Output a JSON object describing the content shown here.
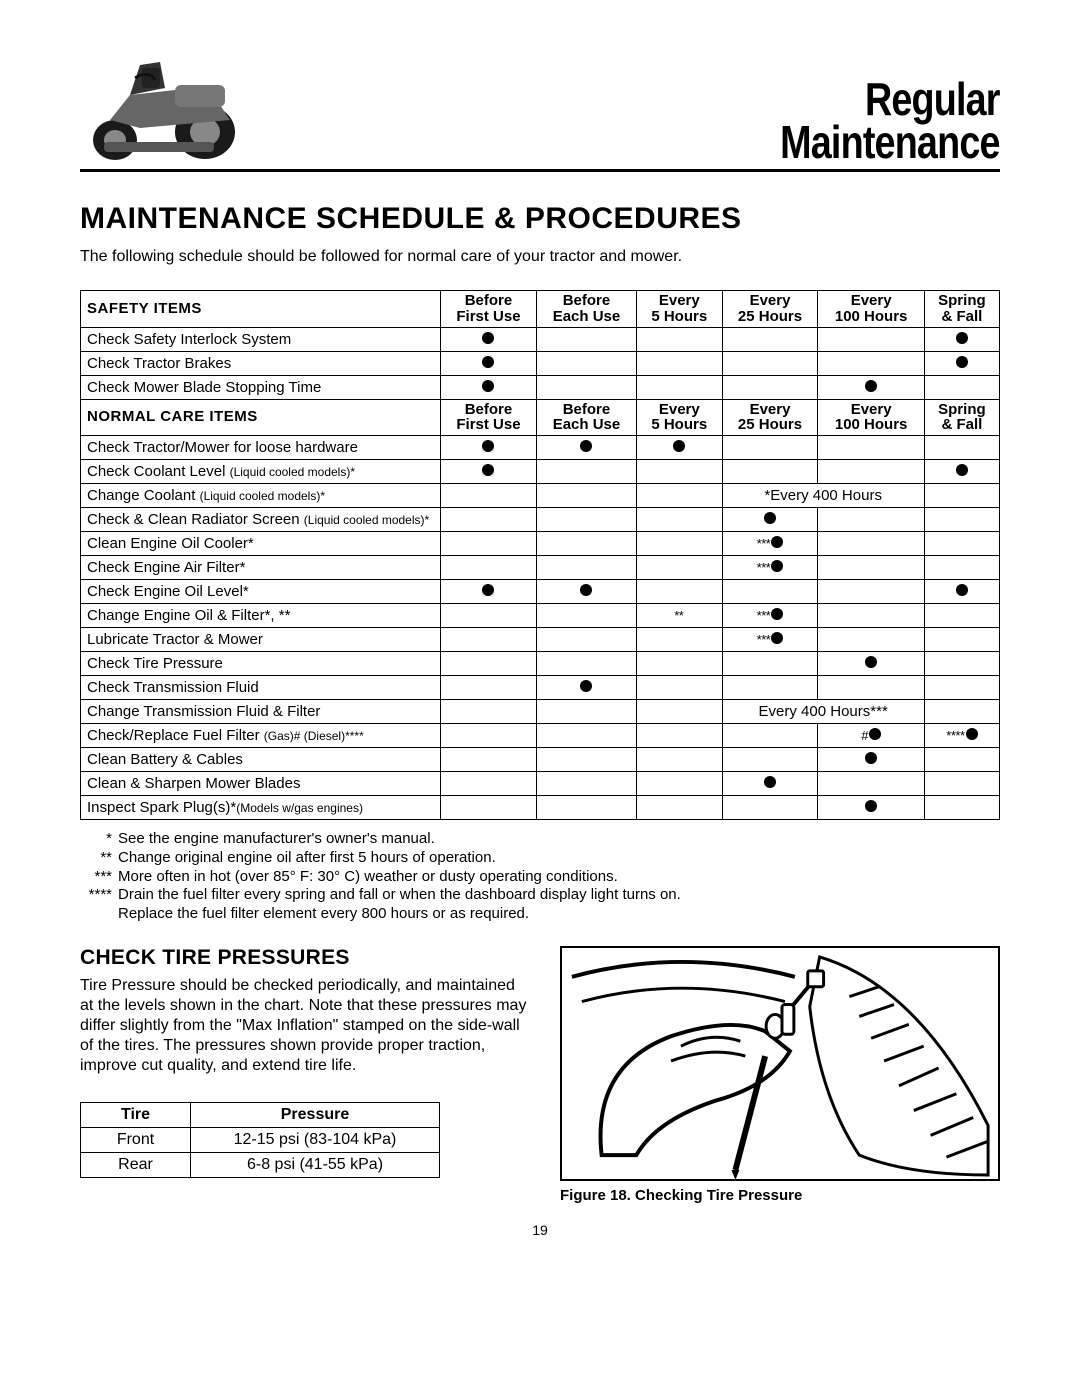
{
  "header": {
    "title_line1": "Regular",
    "title_line2": "Maintenance"
  },
  "h1": "MAINTENANCE SCHEDULE & PROCEDURES",
  "intro": "The following schedule should be followed for normal care of your tractor and mower.",
  "schedule": {
    "columns": [
      {
        "line1": "Before",
        "line2": "First Use"
      },
      {
        "line1": "Before",
        "line2": "Each Use"
      },
      {
        "line1": "Every",
        "line2": "5 Hours"
      },
      {
        "line1": "Every",
        "line2": "25 Hours"
      },
      {
        "line1": "Every",
        "line2": "100 Hours"
      },
      {
        "line1": "Spring",
        "line2": "& Fall"
      }
    ],
    "sections": [
      {
        "label": "SAFETY ITEMS",
        "rows": [
          {
            "item": "Check Safety Interlock System",
            "marks": [
              "dot",
              "",
              "",
              "",
              "",
              "dot"
            ],
            "prefix": [
              "",
              "",
              "",
              "",
              "",
              ""
            ]
          },
          {
            "item": "Check Tractor Brakes",
            "marks": [
              "dot",
              "",
              "",
              "",
              "",
              "dot"
            ],
            "prefix": [
              "",
              "",
              "",
              "",
              "",
              ""
            ]
          },
          {
            "item": "Check Mower Blade Stopping Time",
            "marks": [
              "dot",
              "",
              "",
              "",
              "dot",
              ""
            ],
            "prefix": [
              "",
              "",
              "",
              "",
              "",
              ""
            ]
          }
        ]
      },
      {
        "label": "NORMAL CARE ITEMS",
        "rows": [
          {
            "item": "Check Tractor/Mower for loose hardware",
            "marks": [
              "dot",
              "dot",
              "dot",
              "",
              "",
              ""
            ],
            "prefix": [
              "",
              "",
              "",
              "",
              "",
              ""
            ]
          },
          {
            "item_html": "Check Coolant Level <span class='small'>(Liquid cooled models)*</span>",
            "marks": [
              "dot",
              "",
              "",
              "",
              "",
              "dot"
            ],
            "prefix": [
              "",
              "",
              "",
              "",
              "",
              ""
            ]
          },
          {
            "item_html": "Change Coolant <span class='small'>(Liquid cooled models)*</span>",
            "span": {
              "from": 3,
              "to": 4,
              "text": "*Every 400 Hours"
            },
            "marks": [
              "",
              "",
              "",
              "",
              "",
              ""
            ],
            "prefix": [
              "",
              "",
              "",
              "",
              "",
              ""
            ]
          },
          {
            "item_html": "Check & Clean Radiator Screen <span class='small'>(Liquid cooled models)*</span>",
            "marks": [
              "",
              "",
              "",
              "dot",
              "",
              ""
            ],
            "prefix": [
              "",
              "",
              "",
              "",
              "",
              ""
            ]
          },
          {
            "item": "Clean Engine Oil Cooler*",
            "marks": [
              "",
              "",
              "",
              "dot",
              "",
              ""
            ],
            "prefix": [
              "",
              "",
              "",
              "***",
              "",
              ""
            ]
          },
          {
            "item": "Check Engine Air Filter*",
            "marks": [
              "",
              "",
              "",
              "dot",
              "",
              ""
            ],
            "prefix": [
              "",
              "",
              "",
              "***",
              "",
              ""
            ]
          },
          {
            "item": "Check Engine Oil Level*",
            "marks": [
              "dot",
              "dot",
              "",
              "",
              "",
              "dot"
            ],
            "prefix": [
              "",
              "",
              "",
              "",
              "",
              ""
            ]
          },
          {
            "item": "Change Engine Oil & Filter*, **",
            "marks": [
              "",
              "",
              "",
              "dot",
              "",
              ""
            ],
            "prefix": [
              "",
              "",
              "**",
              "***",
              "",
              ""
            ],
            "textonly": [
              false,
              false,
              true,
              false,
              false,
              false
            ]
          },
          {
            "item": "Lubricate Tractor & Mower",
            "marks": [
              "",
              "",
              "",
              "dot",
              "",
              ""
            ],
            "prefix": [
              "",
              "",
              "",
              "***",
              "",
              ""
            ]
          },
          {
            "item": "Check Tire Pressure",
            "marks": [
              "",
              "",
              "",
              "",
              "dot",
              ""
            ],
            "prefix": [
              "",
              "",
              "",
              "",
              "",
              ""
            ]
          },
          {
            "item": "Check Transmission Fluid",
            "marks": [
              "",
              "dot",
              "",
              "",
              "",
              ""
            ],
            "prefix": [
              "",
              "",
              "",
              "",
              "",
              ""
            ]
          },
          {
            "item": "Change Transmission Fluid & Filter",
            "span": {
              "from": 3,
              "to": 4,
              "text": "Every 400 Hours***"
            },
            "marks": [
              "",
              "",
              "",
              "",
              "",
              ""
            ],
            "prefix": [
              "",
              "",
              "",
              "",
              "",
              ""
            ]
          },
          {
            "item_html": "Check/Replace Fuel Filter  <span class='small'>(Gas)#  (Diesel)****</span>",
            "marks": [
              "",
              "",
              "",
              "",
              "dot",
              "dot"
            ],
            "prefix": [
              "",
              "",
              "",
              "",
              "#",
              "****"
            ]
          },
          {
            "item": "Clean Battery & Cables",
            "marks": [
              "",
              "",
              "",
              "",
              "dot",
              ""
            ],
            "prefix": [
              "",
              "",
              "",
              "",
              "",
              ""
            ]
          },
          {
            "item": "Clean & Sharpen Mower Blades",
            "marks": [
              "",
              "",
              "",
              "dot",
              "",
              ""
            ],
            "prefix": [
              "",
              "",
              "",
              "",
              "",
              ""
            ]
          },
          {
            "item_html": "Inspect Spark Plug(s)*<span class='small'>(Models w/gas engines)</span>",
            "marks": [
              "",
              "",
              "",
              "",
              "dot",
              ""
            ],
            "prefix": [
              "",
              "",
              "",
              "",
              "",
              ""
            ]
          }
        ]
      }
    ]
  },
  "footnotes": [
    {
      "sym": "*",
      "text": "See the engine manufacturer's owner's manual."
    },
    {
      "sym": "**",
      "text": "Change original engine oil after first 5 hours of operation."
    },
    {
      "sym": "***",
      "text": "More often in hot (over 85° F: 30° C) weather or dusty operating conditions."
    },
    {
      "sym": "****",
      "text": "Drain the fuel filter every spring and fall or when the dashboard display light turns on."
    },
    {
      "sym": "",
      "text": "Replace the fuel filter element every 800 hours or as required."
    }
  ],
  "tire_section": {
    "heading": "CHECK TIRE PRESSURES",
    "body": "Tire Pressure should be checked periodically, and maintained at the levels shown in the chart. Note that these pressures may differ slightly from the \"Max Inflation\" stamped on the side-wall of the tires. The pressures shown provide proper traction, improve cut quality, and extend tire life.",
    "table": {
      "headers": [
        "Tire",
        "Pressure"
      ],
      "rows": [
        [
          "Front",
          "12-15 psi (83-104 kPa)"
        ],
        [
          "Rear",
          "6-8 psi (41-55 kPa)"
        ]
      ]
    },
    "figure_caption": "Figure 18. Checking Tire Pressure"
  },
  "page_number": "19",
  "styling": {
    "text_color": "#000000",
    "background": "#ffffff",
    "border_color": "#000000",
    "dot_color": "#000000",
    "title_font_weight": 900,
    "h1_fontsize_pt": 22,
    "body_fontsize_pt": 12
  }
}
